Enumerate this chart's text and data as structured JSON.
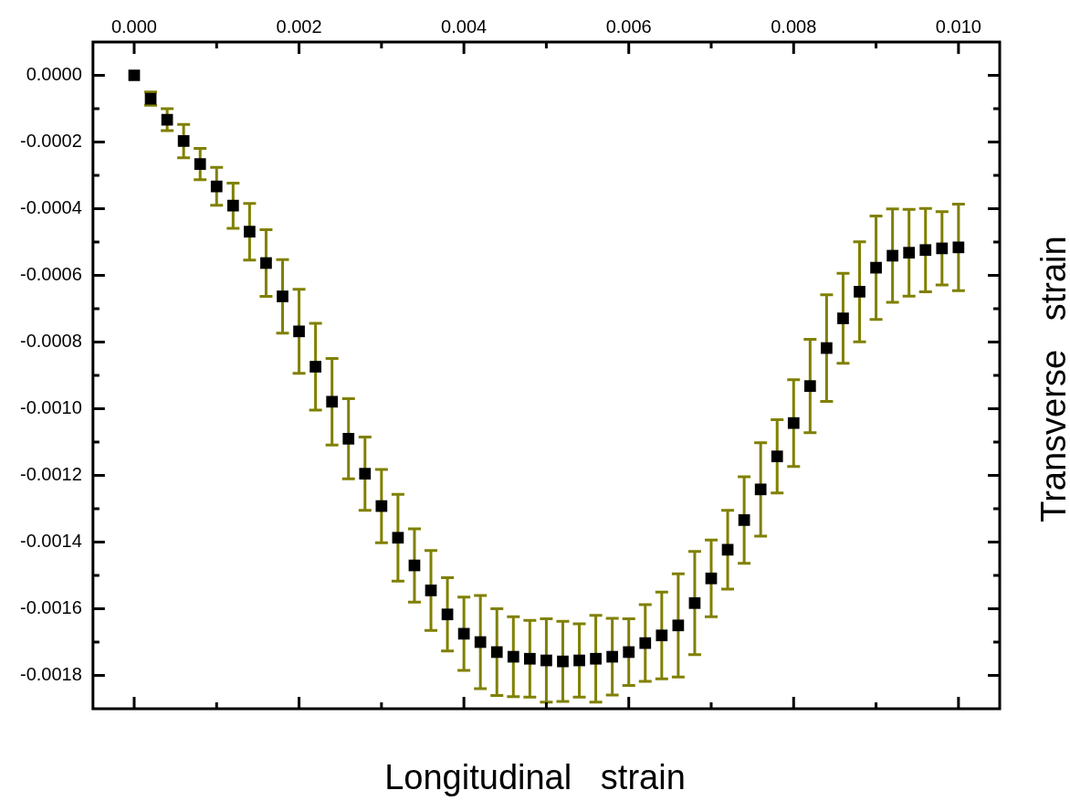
{
  "chart_data": {
    "type": "scatter",
    "xlabel": "Longitudinal   strain",
    "ylabel": "Transverse   strain",
    "x": [
      0,
      0.0002,
      0.0004,
      0.0006,
      0.0008,
      0.001,
      0.0012,
      0.0014,
      0.0016,
      0.0018,
      0.002,
      0.0022,
      0.0024,
      0.0026,
      0.0028,
      0.003,
      0.0032,
      0.0034,
      0.0036,
      0.0038,
      0.004,
      0.0042,
      0.0044,
      0.0046,
      0.0048,
      0.005,
      0.0052,
      0.0054,
      0.0056,
      0.0058,
      0.006,
      0.0062,
      0.0064,
      0.0066,
      0.0068,
      0.007,
      0.0072,
      0.0074,
      0.0076,
      0.0078,
      0.008,
      0.0082,
      0.0084,
      0.0086,
      0.0088,
      0.009,
      0.0092,
      0.0094,
      0.0096,
      0.0098,
      0.01
    ],
    "series": [
      {
        "color": "#000000",
        "values": [
          0,
          -7e-05,
          -0.000133,
          -0.000197,
          -0.000266,
          -0.000333,
          -0.000391,
          -0.000469,
          -0.000563,
          -0.000663,
          -0.000768,
          -0.000874,
          -0.000979,
          -0.00109,
          -0.001195,
          -0.001292,
          -0.001387,
          -0.00147,
          -0.001545,
          -0.001617,
          -0.001675,
          -0.0017,
          -0.00173,
          -0.001744,
          -0.00175,
          -0.001755,
          -0.001758,
          -0.001755,
          -0.00175,
          -0.001744,
          -0.00173,
          -0.001703,
          -0.00168,
          -0.00165,
          -0.001583,
          -0.001509,
          -0.001423,
          -0.001334,
          -0.001242,
          -0.001143,
          -0.001043,
          -0.000932,
          -0.000818,
          -0.000729,
          -0.000649,
          -0.000577,
          -0.000541,
          -0.000532,
          -0.000524,
          -0.000519,
          -0.000516
        ],
        "errors": [
          null,
          2e-05,
          3.3e-05,
          5e-05,
          4.7e-05,
          5.7e-05,
          6.8e-05,
          8.5e-05,
          0.0001,
          0.00011,
          0.000126,
          0.00013,
          0.00013,
          0.00012,
          0.00011,
          0.00011,
          0.00013,
          0.00011,
          0.00012,
          0.00011,
          0.00011,
          0.00014,
          0.00013,
          0.00012,
          0.000115,
          0.000125,
          0.00012,
          0.00011,
          0.00013,
          0.000115,
          0.0001,
          0.000115,
          0.00013,
          0.000155,
          0.000155,
          0.000115,
          0.000118,
          0.00013,
          0.00014,
          0.00011,
          0.00013,
          0.00014,
          0.00016,
          0.000135,
          0.00015,
          0.000155,
          0.00014,
          0.00013,
          0.000125,
          0.00011,
          0.00013
        ]
      }
    ],
    "marker": "square",
    "xlim": [
      -0.0005,
      0.0105
    ],
    "xticks": [
      {
        "value": 0,
        "label": "0.000"
      },
      {
        "value": 0.001,
        "label": null
      },
      {
        "value": 0.002,
        "label": "0.002"
      },
      {
        "value": 0.003,
        "label": null
      },
      {
        "value": 0.004,
        "label": "0.004"
      },
      {
        "value": 0.005,
        "label": null
      },
      {
        "value": 0.006,
        "label": "0.006"
      },
      {
        "value": 0.007,
        "label": null
      },
      {
        "value": 0.008,
        "label": "0.008"
      },
      {
        "value": 0.009,
        "label": null
      },
      {
        "value": 0.01,
        "label": "0.010"
      }
    ],
    "ylim": [
      -0.0019,
      0.0001
    ],
    "yticks": [
      {
        "value": 0,
        "label": "0.0000"
      },
      {
        "value": -0.0001,
        "label": null
      },
      {
        "value": -0.0002,
        "label": "-0.0002"
      },
      {
        "value": -0.0003,
        "label": null
      },
      {
        "value": -0.0004,
        "label": "-0.0004"
      },
      {
        "value": -0.0005,
        "label": null
      },
      {
        "value": -0.0006,
        "label": "-0.0006"
      },
      {
        "value": -0.0007,
        "label": null
      },
      {
        "value": -0.0008,
        "label": "-0.0008"
      },
      {
        "value": -0.0009,
        "label": null
      },
      {
        "value": -0.001,
        "label": "-0.0010"
      },
      {
        "value": -0.0011,
        "label": null
      },
      {
        "value": -0.0012,
        "label": "-0.0012"
      },
      {
        "value": -0.0013,
        "label": null
      },
      {
        "value": -0.0014,
        "label": "-0.0014"
      },
      {
        "value": -0.0015,
        "label": null
      },
      {
        "value": -0.0016,
        "label": "-0.0016"
      },
      {
        "value": -0.0017,
        "label": null
      },
      {
        "value": -0.0018,
        "label": "-0.0018"
      }
    ]
  }
}
